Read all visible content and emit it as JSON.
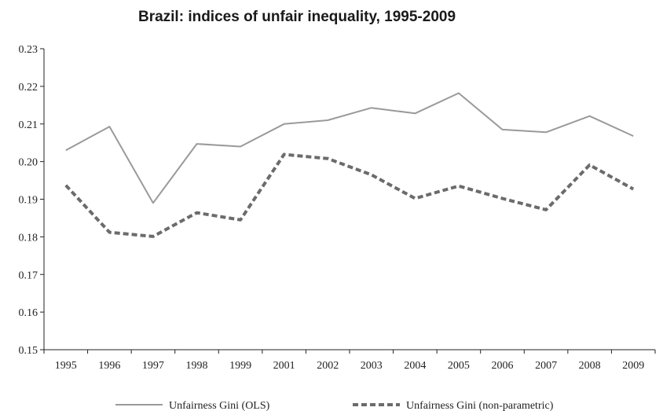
{
  "chart_data": {
    "type": "line",
    "title": "Brazil: indices of unfair inequality, 1995-2009",
    "xlabel": "",
    "ylabel": "",
    "categories": [
      "1995",
      "1996",
      "1997",
      "1998",
      "1999",
      "2001",
      "2002",
      "2003",
      "2004",
      "2005",
      "2006",
      "2007",
      "2008",
      "2009"
    ],
    "ylim": [
      0.15,
      0.23
    ],
    "yticks": [
      "0.15",
      "0.16",
      "0.17",
      "0.18",
      "0.19",
      "0.20",
      "0.21",
      "0.22",
      "0.23"
    ],
    "grid": false,
    "legend_position": "bottom",
    "series": [
      {
        "name": "Unfairness Gini (OLS)",
        "style": "solid",
        "color": "#9a9a9a",
        "values": [
          0.203,
          0.2093,
          0.189,
          0.2047,
          0.204,
          0.21,
          0.211,
          0.2143,
          0.2128,
          0.2182,
          0.2085,
          0.2078,
          0.2121,
          0.2068
        ]
      },
      {
        "name": "Unfairness Gini (non-parametric)",
        "style": "dashed",
        "color": "#6b6b6b",
        "values": [
          0.1937,
          0.1812,
          0.1801,
          0.1864,
          0.1845,
          0.2019,
          0.2008,
          0.1965,
          0.1902,
          0.1935,
          0.1902,
          0.1872,
          0.1991,
          0.1927
        ]
      }
    ]
  }
}
